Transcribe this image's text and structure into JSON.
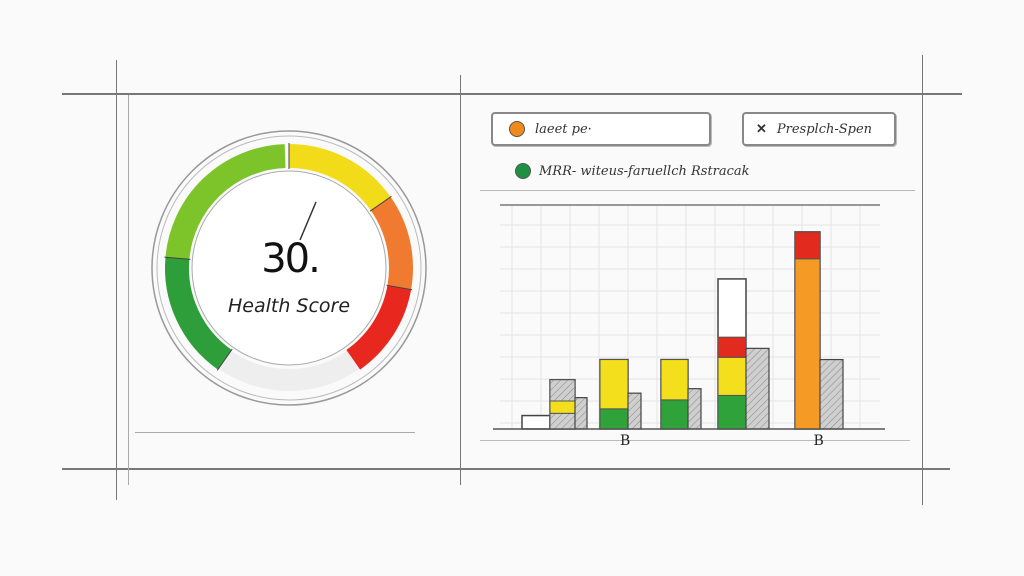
{
  "gauge": {
    "value": "30.",
    "label": "Health Score",
    "segments": [
      {
        "color": "#2e9e3a",
        "from": 215,
        "to": 275
      },
      {
        "color": "#7cc42a",
        "from": 275,
        "to": 358
      },
      {
        "color": "#f2dc1a",
        "from": 0,
        "to": 55
      },
      {
        "color": "#f07a30",
        "from": 55,
        "to": 100
      },
      {
        "color": "#e8281e",
        "from": 100,
        "to": 145
      }
    ]
  },
  "filters": [
    {
      "label": "laeet pe·",
      "icon": "orange-dot-icon",
      "color": "#f08a1c"
    },
    {
      "label": "Presplch-Spen",
      "icon": "close-x-icon"
    }
  ],
  "legend": {
    "label": "MRR- witeus-faruellch Rstracak",
    "color": "#1f9040"
  },
  "chart_data": {
    "type": "bar",
    "ylim": [
      0,
      100
    ],
    "grid": true,
    "x_tick_labels": [
      "",
      "",
      "B",
      "",
      "",
      "B"
    ],
    "colors": {
      "green": "#2fa23a",
      "yellow": "#f4df1c",
      "red": "#e22a1e",
      "orange": "#f59a24",
      "gray": "#cfcfcf"
    },
    "groups": [
      {
        "stack": [],
        "outline_total": 6,
        "side": null
      },
      {
        "stack": [
          {
            "c": "gray",
            "v": 7
          },
          {
            "c": "yellow",
            "v": 5.5
          },
          {
            "c": "gray",
            "v": 9.5
          }
        ],
        "outline_total": 22,
        "side": 14
      },
      {
        "stack": [
          {
            "c": "green",
            "v": 9
          },
          {
            "c": "yellow",
            "v": 22
          }
        ],
        "outline_total": 31,
        "side": 16
      },
      {
        "stack": [
          {
            "c": "green",
            "v": 13
          },
          {
            "c": "yellow",
            "v": 18
          }
        ],
        "outline_total": 31,
        "side": 18
      },
      {
        "stack": [
          {
            "c": "green",
            "v": 15
          },
          {
            "c": "yellow",
            "v": 17
          },
          {
            "c": "red",
            "v": 9
          }
        ],
        "outline_total": 67,
        "side": 36
      },
      {
        "stack": [
          {
            "c": "orange",
            "v": 76
          },
          {
            "c": "red",
            "v": 12
          }
        ],
        "outline_total": 88,
        "side": 31
      }
    ]
  }
}
